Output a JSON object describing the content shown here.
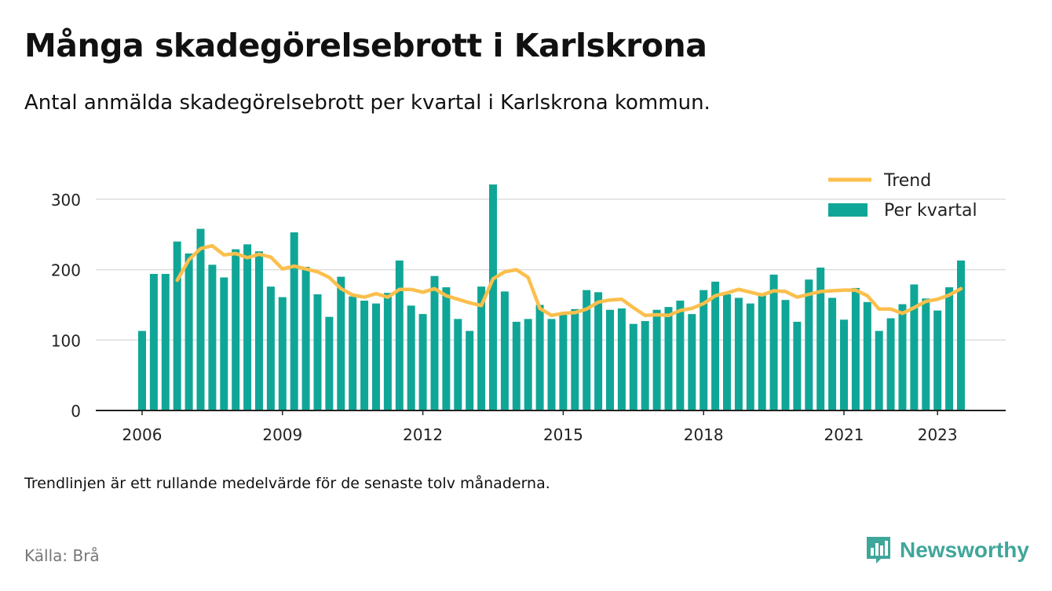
{
  "title": "Många skadegörelsebrott i Karlskrona",
  "subtitle": "Antal anmälda skadegörelsebrott per kvartal i Karlskrona kommun.",
  "note": "Trendlinjen är ett rullande medelvärde för de senaste tolv månaderna.",
  "source": "Källa: Brå",
  "brand": {
    "name": "Newsworthy",
    "icon": "newsworthy-logo-icon",
    "color": "#3fa69a"
  },
  "colors": {
    "bar": "#10a697",
    "trend": "#fbbf4c",
    "grid": "#dddddd",
    "axis": "#222222"
  },
  "chart_data": {
    "type": "bar",
    "xlabel": "",
    "ylabel": "",
    "ylim": [
      0,
      340
    ],
    "yticks": [
      0,
      100,
      200,
      300
    ],
    "xticks": [
      "2006",
      "2009",
      "2012",
      "2015",
      "2018",
      "2021",
      "2023"
    ],
    "grid": true,
    "legend_position": "top-right",
    "start": "2006 Q1",
    "series": [
      {
        "name": "Per kvartal",
        "type": "bar",
        "values": [
          113,
          194,
          194,
          240,
          223,
          258,
          207,
          189,
          229,
          236,
          226,
          176,
          161,
          253,
          204,
          165,
          133,
          190,
          162,
          156,
          152,
          167,
          213,
          149,
          137,
          191,
          175,
          130,
          113,
          176,
          321,
          169,
          126,
          130,
          150,
          130,
          136,
          144,
          171,
          168,
          143,
          145,
          123,
          127,
          143,
          147,
          156,
          137,
          171,
          183,
          165,
          160,
          152,
          165,
          193,
          157,
          126,
          186,
          203,
          160,
          129,
          174,
          154,
          113,
          131,
          151,
          179,
          159,
          142,
          175,
          213
        ]
      },
      {
        "name": "Trend",
        "type": "line",
        "values": [
          null,
          null,
          null,
          185,
          214,
          230,
          234,
          221,
          223,
          217,
          222,
          218,
          201,
          205,
          201,
          197,
          189,
          173,
          164,
          161,
          166,
          161,
          172,
          172,
          168,
          173,
          163,
          158,
          153,
          149,
          187,
          197,
          200,
          189,
          145,
          135,
          138,
          139,
          144,
          154,
          157,
          158,
          146,
          135,
          136,
          135,
          142,
          145,
          152,
          163,
          167,
          172,
          168,
          164,
          170,
          169,
          161,
          165,
          169,
          170,
          171,
          171,
          163,
          144,
          144,
          138,
          146,
          155,
          158,
          164,
          173
        ]
      }
    ]
  }
}
